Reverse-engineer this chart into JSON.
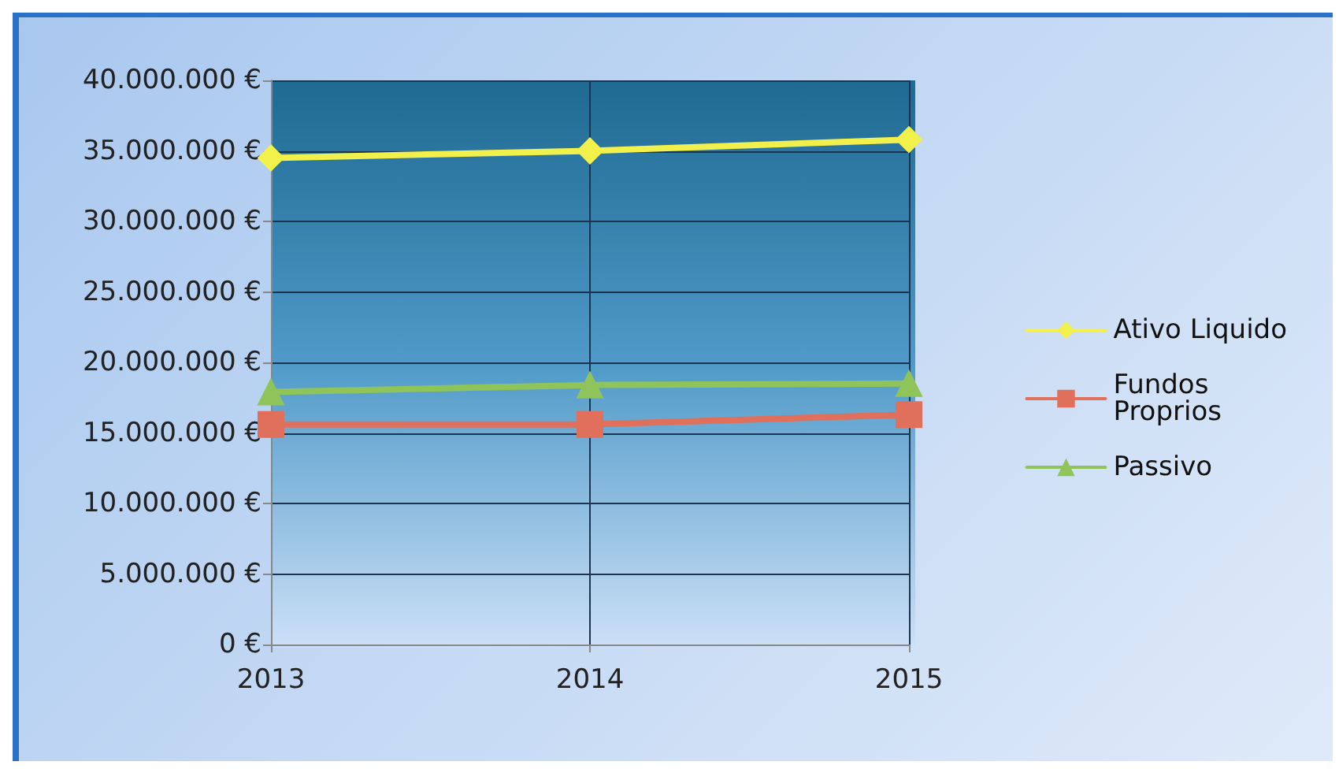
{
  "chart_data": {
    "type": "line",
    "categories": [
      "2013",
      "2014",
      "2015"
    ],
    "series": [
      {
        "name": "Ativo Liquido",
        "color": "#f2f04a",
        "marker": "diamond",
        "values": [
          34500000,
          35000000,
          35800000
        ]
      },
      {
        "name": "Fundos Proprios",
        "color": "#e0705c",
        "marker": "square",
        "values": [
          15600000,
          15600000,
          16300000
        ]
      },
      {
        "name": "Passivo",
        "color": "#8fc45a",
        "marker": "triangle",
        "values": [
          17900000,
          18400000,
          18500000
        ]
      }
    ],
    "ylim": [
      0,
      40000000
    ],
    "yticks": [
      {
        "value": 0,
        "label": "0 €"
      },
      {
        "value": 5000000,
        "label": "5.000.000 €"
      },
      {
        "value": 10000000,
        "label": "10.000.000 €"
      },
      {
        "value": 15000000,
        "label": "15.000.000 €"
      },
      {
        "value": 20000000,
        "label": "20.000.000 €"
      },
      {
        "value": 25000000,
        "label": "25.000.000 €"
      },
      {
        "value": 30000000,
        "label": "30.000.000 €"
      },
      {
        "value": 35000000,
        "label": "35.000.000 €"
      },
      {
        "value": 40000000,
        "label": "40.000.000 €"
      }
    ],
    "grid": true,
    "legend": "right",
    "line_style": "solid"
  }
}
